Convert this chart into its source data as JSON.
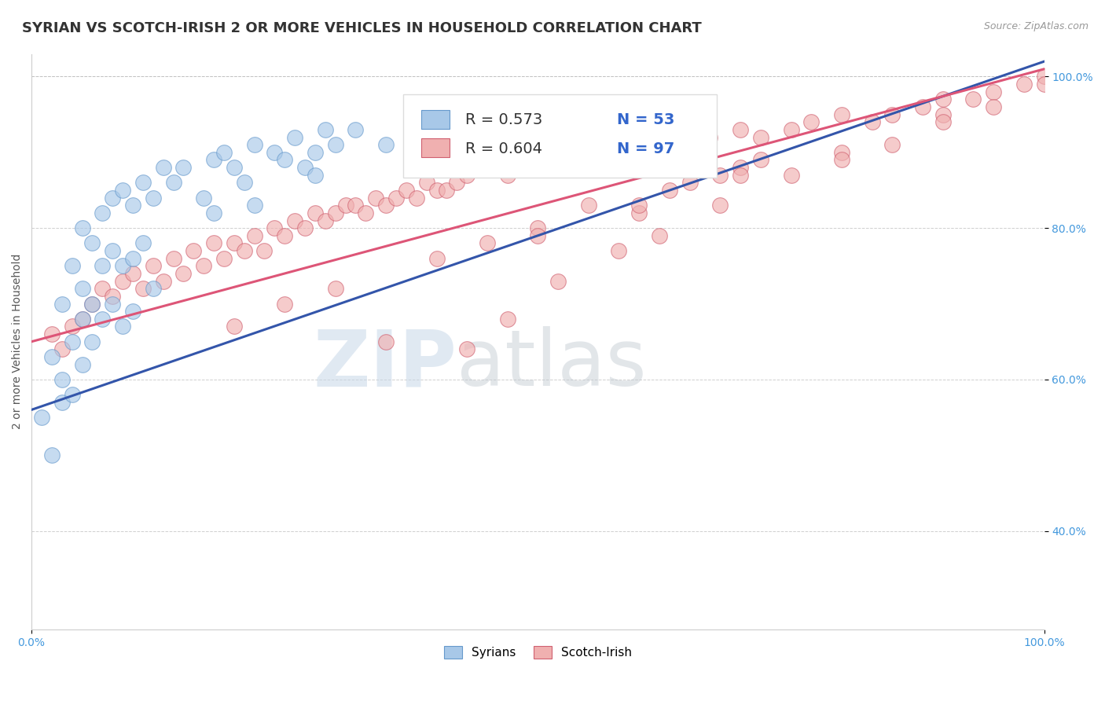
{
  "title": "SYRIAN VS SCOTCH-IRISH 2 OR MORE VEHICLES IN HOUSEHOLD CORRELATION CHART",
  "source_text": "Source: ZipAtlas.com",
  "xlabel": "",
  "ylabel": "2 or more Vehicles in Household",
  "xlim": [
    0,
    100
  ],
  "ylim": [
    27,
    103
  ],
  "yticks": [
    40,
    60,
    80,
    100
  ],
  "yticklabels": [
    "40.0%",
    "60.0%",
    "80.0%",
    "100.0%"
  ],
  "grid_color": "#bbbbbb",
  "background_color": "#ffffff",
  "watermark_zip": "ZIP",
  "watermark_atlas": "atlas",
  "syrians_color": "#a8c8e8",
  "syrians_edge": "#6699cc",
  "scotch_color": "#f0b0b0",
  "scotch_edge": "#d06070",
  "trend_blue": "#3355aa",
  "trend_pink": "#dd5577",
  "label_syrians": "Syrians",
  "label_scotch": "Scotch-Irish",
  "legend_r1": "R = 0.573",
  "legend_n1": "N = 53",
  "legend_r2": "R = 0.604",
  "legend_n2": "N = 97",
  "legend_color_r": "#333333",
  "legend_color_n": "#3366cc",
  "title_fontsize": 13,
  "axis_label_fontsize": 10,
  "tick_fontsize": 10,
  "legend_fontsize": 14,
  "source_fontsize": 9,
  "syrians_x": [
    1,
    2,
    2,
    3,
    3,
    3,
    4,
    4,
    4,
    5,
    5,
    5,
    5,
    6,
    6,
    6,
    7,
    7,
    7,
    8,
    8,
    8,
    9,
    9,
    9,
    10,
    10,
    10,
    11,
    11,
    12,
    12,
    13,
    14,
    15,
    17,
    18,
    18,
    19,
    20,
    21,
    22,
    24,
    25,
    26,
    27,
    28,
    28,
    29,
    30,
    32,
    35,
    22
  ],
  "syrians_y": [
    55,
    50,
    63,
    60,
    70,
    57,
    65,
    75,
    58,
    72,
    68,
    80,
    62,
    78,
    70,
    65,
    82,
    75,
    68,
    84,
    77,
    70,
    85,
    75,
    67,
    83,
    76,
    69,
    86,
    78,
    84,
    72,
    88,
    86,
    88,
    84,
    89,
    82,
    90,
    88,
    86,
    91,
    90,
    89,
    92,
    88,
    87,
    90,
    93,
    91,
    93,
    91,
    83
  ],
  "scotch_x": [
    2,
    3,
    4,
    5,
    6,
    7,
    8,
    9,
    10,
    11,
    12,
    13,
    14,
    15,
    16,
    17,
    18,
    19,
    20,
    21,
    22,
    23,
    24,
    25,
    26,
    27,
    28,
    29,
    30,
    31,
    32,
    33,
    34,
    35,
    36,
    37,
    38,
    39,
    40,
    41,
    42,
    43,
    45,
    47,
    49,
    51,
    53,
    55,
    57,
    60,
    62,
    65,
    67,
    70,
    72,
    75,
    77,
    80,
    83,
    85,
    88,
    90,
    93,
    95,
    98,
    100,
    45,
    50,
    55,
    60,
    63,
    65,
    68,
    70,
    72,
    20,
    25,
    30,
    40,
    50,
    60,
    70,
    80,
    90,
    43,
    47,
    52,
    58,
    62,
    68,
    75,
    80,
    85,
    90,
    95,
    100,
    35
  ],
  "scotch_y": [
    66,
    64,
    67,
    68,
    70,
    72,
    71,
    73,
    74,
    72,
    75,
    73,
    76,
    74,
    77,
    75,
    78,
    76,
    78,
    77,
    79,
    77,
    80,
    79,
    81,
    80,
    82,
    81,
    82,
    83,
    83,
    82,
    84,
    83,
    84,
    85,
    84,
    86,
    85,
    85,
    86,
    87,
    88,
    87,
    88,
    89,
    88,
    89,
    90,
    91,
    90,
    91,
    92,
    93,
    92,
    93,
    94,
    95,
    94,
    95,
    96,
    97,
    97,
    98,
    99,
    100,
    78,
    80,
    83,
    82,
    85,
    86,
    87,
    88,
    89,
    67,
    70,
    72,
    76,
    79,
    83,
    87,
    90,
    95,
    64,
    68,
    73,
    77,
    79,
    83,
    87,
    89,
    91,
    94,
    96,
    99,
    65
  ],
  "blue_trend_x0": 0,
  "blue_trend_y0": 56,
  "blue_trend_x1": 100,
  "blue_trend_y1": 102,
  "pink_trend_x0": 0,
  "pink_trend_y0": 65,
  "pink_trend_x1": 100,
  "pink_trend_y1": 101
}
